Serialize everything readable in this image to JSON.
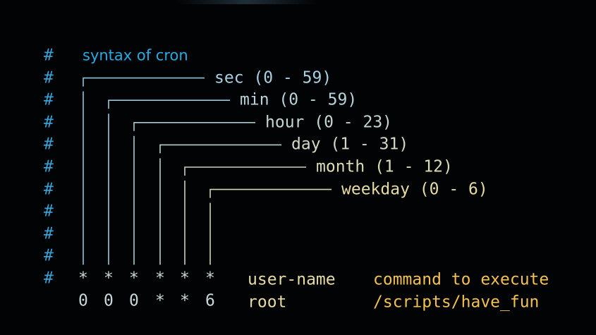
{
  "title": "syntax of cron",
  "comment_char": "#",
  "fields": [
    {
      "label": "sec (0 - 59)",
      "color": "#a8cfe0",
      "line_color": "#8fc4dc",
      "wildcard": "*",
      "example": "0"
    },
    {
      "label": "min (0 - 59)",
      "color": "#b6d3dc",
      "line_color": "#98c8da",
      "wildcard": "*",
      "example": "0"
    },
    {
      "label": "hour (0 - 23)",
      "color": "#c2d6d2",
      "line_color": "#a6ccd2",
      "wildcard": "*",
      "example": "0"
    },
    {
      "label": "day (1 - 31)",
      "color": "#cfd9c4",
      "line_color": "#b4d0cc",
      "wildcard": "*",
      "example": "*"
    },
    {
      "label": "month (1 - 12)",
      "color": "#dbdbb4",
      "line_color": "#c4d4c0",
      "wildcard": "*",
      "example": "*"
    },
    {
      "label": "weekday (0 - 6)",
      "color": "#e6dba2",
      "line_color": "#d0d6b4",
      "wildcard": "*",
      "example": "6"
    }
  ],
  "user_header": "user-name",
  "command_header": "command to execute",
  "user_value": "root",
  "command_value": "/scripts/have_fun",
  "colors": {
    "hash": "#3aa0d4",
    "title": "#2aa8e0",
    "user": "#e6dba2",
    "command": "#f2c14e",
    "values": "#c8d8d8"
  }
}
